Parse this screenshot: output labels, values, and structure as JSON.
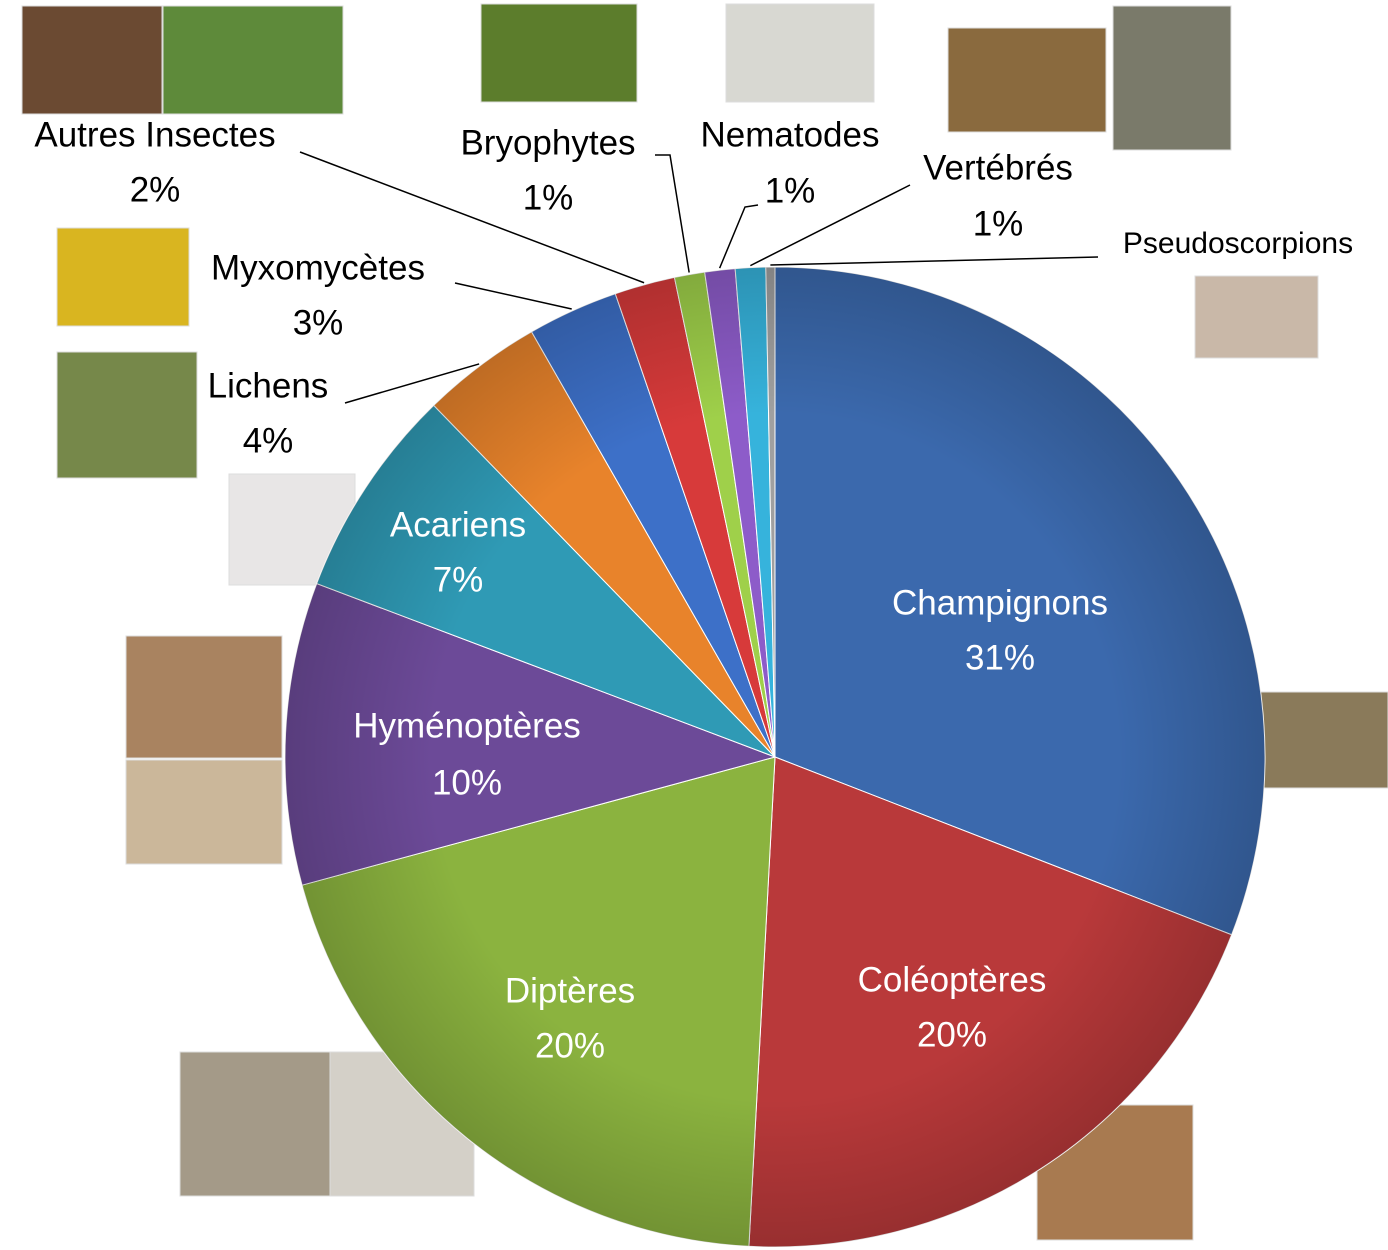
{
  "chart_data": {
    "type": "pie",
    "categories": [
      "Champignons",
      "Coléoptères",
      "Diptères",
      "Hyménoptères",
      "Acariens",
      "Lichens",
      "Myxomycètes",
      "Autres Insectes",
      "Bryophytes",
      "Nematodes",
      "Vertébrés",
      "Pseudoscorpions"
    ],
    "values": [
      31,
      20,
      20,
      10,
      7,
      4,
      3,
      2,
      1,
      1,
      1,
      0.3
    ],
    "value_labels": [
      "31%",
      "20%",
      "20%",
      "10%",
      "7%",
      "4%",
      "3%",
      "2%",
      "1%",
      "1%",
      "1%",
      null
    ],
    "colors": [
      "#3b69ad",
      "#b9393a",
      "#8bb33f",
      "#6c4a98",
      "#2f9ab5",
      "#e8832b",
      "#3d70c8",
      "#d73a3a",
      "#9fd04a",
      "#8d5cc9",
      "#36b3dc",
      "#a0a0a0"
    ]
  }
}
